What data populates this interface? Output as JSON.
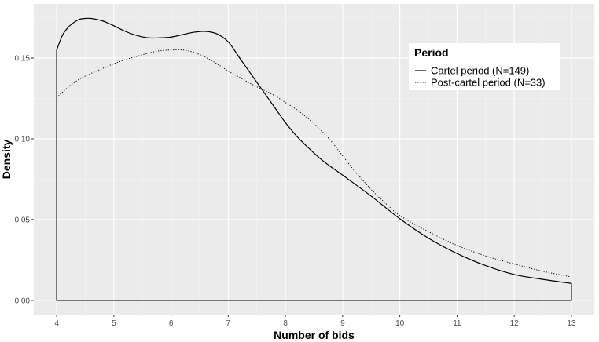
{
  "chart_data": {
    "type": "line",
    "title": "",
    "xlabel": "Number of bids",
    "ylabel": "Density",
    "xlim": [
      3.6,
      13.4
    ],
    "ylim": [
      -0.0088,
      0.1835
    ],
    "x_ticks": [
      4,
      5,
      6,
      7,
      8,
      9,
      10,
      11,
      12,
      13
    ],
    "x_tick_labels": [
      "4",
      "5",
      "6",
      "7",
      "8",
      "9",
      "10",
      "11",
      "12",
      "13"
    ],
    "y_ticks": [
      0,
      0.05,
      0.1,
      0.15
    ],
    "y_tick_labels": [
      "0.00",
      "0.05",
      "0.10",
      "0.15"
    ],
    "grid": true,
    "background": "#ebebeb",
    "legend": {
      "title": "Period",
      "placement": "top-right",
      "entries": [
        "Cartel period (N=149)",
        "Post-cartel period (N=33)"
      ]
    },
    "series": [
      {
        "name": "Cartel period (N=149)",
        "line_style": "solid",
        "color": "#000000",
        "x": [
          4.0,
          4.1,
          4.2,
          4.3,
          4.4,
          4.5,
          4.6,
          4.8,
          5.0,
          5.2,
          5.4,
          5.6,
          5.8,
          6.0,
          6.2,
          6.4,
          6.6,
          6.8,
          7.0,
          7.2,
          7.4,
          7.6,
          7.8,
          8.0,
          8.2,
          8.4,
          8.6,
          8.8,
          9.0,
          9.5,
          10.0,
          10.5,
          11.0,
          11.5,
          12.0,
          12.5,
          13.0
        ],
        "y": [
          0.155,
          0.164,
          0.169,
          0.172,
          0.174,
          0.1745,
          0.1745,
          0.173,
          0.17,
          0.1665,
          0.164,
          0.1625,
          0.1625,
          0.163,
          0.1645,
          0.166,
          0.1665,
          0.165,
          0.16,
          0.15,
          0.14,
          0.13,
          0.12,
          0.11,
          0.1015,
          0.0945,
          0.088,
          0.0825,
          0.0775,
          0.0645,
          0.0505,
          0.0385,
          0.029,
          0.0215,
          0.016,
          0.013,
          0.0105
        ]
      },
      {
        "name": "Post-cartel period (N=33)",
        "line_style": "dotted",
        "color": "#000000",
        "x": [
          4.0,
          4.2,
          4.4,
          4.6,
          4.8,
          5.0,
          5.2,
          5.4,
          5.6,
          5.8,
          6.0,
          6.2,
          6.4,
          6.6,
          6.8,
          7.0,
          7.2,
          7.4,
          7.6,
          7.8,
          8.0,
          8.2,
          8.4,
          8.6,
          8.8,
          9.0,
          9.2,
          9.4,
          9.6,
          9.8,
          10.0,
          10.5,
          11.0,
          11.5,
          12.0,
          12.5,
          13.0
        ],
        "y": [
          0.1255,
          0.132,
          0.137,
          0.1405,
          0.1435,
          0.1465,
          0.149,
          0.151,
          0.153,
          0.1545,
          0.155,
          0.155,
          0.1535,
          0.1505,
          0.1465,
          0.142,
          0.138,
          0.134,
          0.1305,
          0.127,
          0.1225,
          0.118,
          0.1125,
          0.106,
          0.0985,
          0.0895,
          0.0805,
          0.0725,
          0.065,
          0.0585,
          0.0525,
          0.0425,
          0.034,
          0.0275,
          0.0225,
          0.018,
          0.0145
        ]
      }
    ]
  }
}
